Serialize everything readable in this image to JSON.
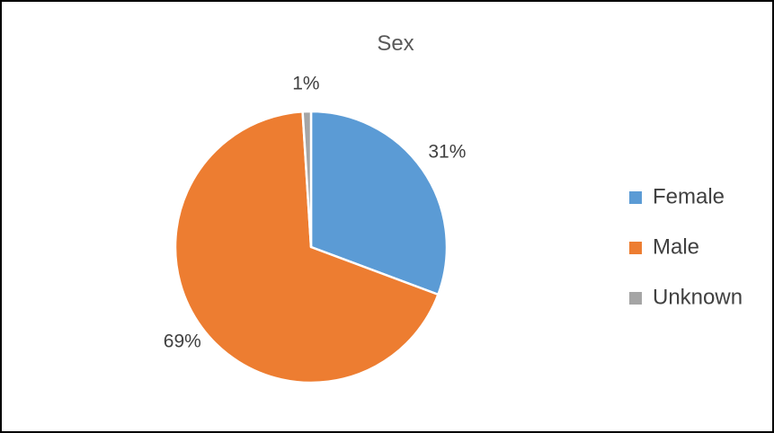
{
  "chart_data": {
    "type": "pie",
    "title": "Sex",
    "categories": [
      "Female",
      "Male",
      "Unknown"
    ],
    "values": [
      31,
      69,
      1
    ],
    "data_labels": [
      "31%",
      "69%",
      "1%"
    ],
    "colors": [
      "#5B9BD5",
      "#ED7D31",
      "#A5A5A5"
    ],
    "start_angle": "12 o'clock",
    "direction": "clockwise",
    "legend": {
      "position": "right",
      "entries": [
        "Female",
        "Male",
        "Unknown"
      ]
    }
  }
}
